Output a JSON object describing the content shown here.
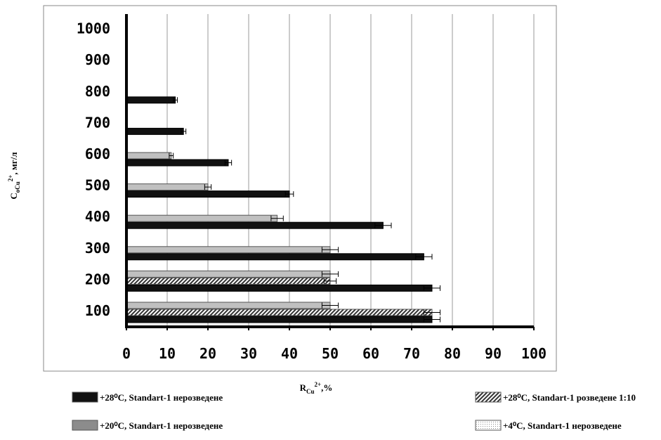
{
  "chart_data": {
    "type": "bar",
    "orientation": "horizontal",
    "categories": [
      100,
      200,
      300,
      400,
      500,
      600,
      700,
      800,
      900,
      1000
    ],
    "xlim": [
      0,
      100
    ],
    "xticks": [
      0,
      10,
      20,
      30,
      40,
      50,
      60,
      70,
      80,
      90,
      100
    ],
    "grid": "vertical",
    "xlabel": {
      "main": "R",
      "sub": "Cu",
      "sup": "2+",
      "tail": ",%"
    },
    "ylabel": {
      "main": "C",
      "sub": "oCu",
      "sup": "2+",
      "tail": ", мг/л"
    },
    "legend_position": "bottom",
    "series": [
      {
        "name": "+28⁰C, Standart-1 нерозведене",
        "legend_label": "+28⁰C, Standart-1 нерозведене",
        "color": "#111111",
        "pattern": "solid",
        "values": [
          75,
          75,
          73,
          63,
          40,
          25,
          14,
          12,
          null,
          null
        ],
        "errors": [
          2,
          2,
          2,
          2,
          1,
          0.8,
          0.6,
          0.5,
          null,
          null
        ]
      },
      {
        "name": "+28⁰C, Standart-1 розведене 1:10",
        "legend_label": "+28⁰C, Standart-1 розведене 1:10",
        "color": "#444444",
        "pattern": "hatch",
        "values": [
          75,
          50,
          null,
          null,
          null,
          null,
          null,
          null,
          null,
          null
        ],
        "errors": [
          2,
          1.5,
          null,
          null,
          null,
          null,
          null,
          null,
          null,
          null
        ]
      },
      {
        "name": "+20⁰C, Standart-1 нерозведене",
        "legend_label": "+20⁰C, Standart-1 нерозведене",
        "color": "#c0c0c0",
        "pattern": "solid",
        "values": [
          50,
          50,
          50,
          37,
          20,
          11,
          null,
          null,
          null,
          null
        ],
        "errors": [
          2,
          2,
          2,
          1.5,
          0.8,
          0.5,
          null,
          null,
          null,
          null
        ]
      },
      {
        "name": "+4⁰C, Standart-1 нерозведене",
        "legend_label": "+4⁰C, Standart-1 нерозведене",
        "color": "#e8e8e8",
        "pattern": "dots",
        "values": [
          null,
          null,
          null,
          null,
          null,
          null,
          null,
          null,
          null,
          null
        ],
        "errors": [
          null,
          null,
          null,
          null,
          null,
          null,
          null,
          null,
          null,
          null
        ]
      }
    ]
  }
}
